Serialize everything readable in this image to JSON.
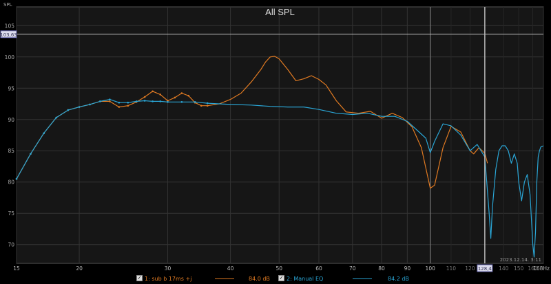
{
  "chart_data": {
    "type": "line",
    "title": "All SPL",
    "ylabel": "SPL",
    "xlabel": "Hz",
    "x_scale": "log",
    "xlim": [
      15,
      168
    ],
    "ylim": [
      67,
      108
    ],
    "grid": true,
    "x_ticks": [
      {
        "v": 15,
        "label": "15",
        "major": true
      },
      {
        "v": 20,
        "label": "20",
        "major": true
      },
      {
        "v": 30,
        "label": "30",
        "major": true
      },
      {
        "v": 40,
        "label": "40",
        "major": true
      },
      {
        "v": 50,
        "label": "50",
        "major": true
      },
      {
        "v": 60,
        "label": "60",
        "major": true
      },
      {
        "v": 70,
        "label": "70",
        "major": true
      },
      {
        "v": 80,
        "label": "80",
        "major": true
      },
      {
        "v": 90,
        "label": "90",
        "major": true
      },
      {
        "v": 100,
        "label": "100",
        "major": true
      },
      {
        "v": 110,
        "label": "110",
        "major": false
      },
      {
        "v": 120,
        "label": "120",
        "major": false
      },
      {
        "v": 140,
        "label": "140",
        "major": false
      },
      {
        "v": 150,
        "label": "150",
        "major": false
      },
      {
        "v": 160,
        "label": "160",
        "major": false
      },
      {
        "v": 168,
        "label": "168Hz",
        "major": true
      }
    ],
    "y_ticks": [
      70,
      75,
      80,
      85,
      90,
      95,
      100,
      105
    ],
    "cursor": {
      "x": 128.4,
      "x_label": "128,4",
      "y": 103.63,
      "y_label": "103,63"
    },
    "timestamp": "2023.12.14. 3:11",
    "series": [
      {
        "name": "1: sub b 17ms +j",
        "color": "#e07a22",
        "level": "84.0 dB",
        "x": [
          15,
          16,
          17,
          18,
          19,
          20,
          21,
          22,
          23,
          24,
          25,
          26,
          27,
          28,
          29,
          30,
          31,
          32,
          33,
          34,
          35,
          36,
          38,
          40,
          42,
          44,
          46,
          47,
          48,
          49,
          50,
          52,
          54,
          56,
          58,
          60,
          62,
          65,
          68,
          72,
          76,
          80,
          84,
          88,
          92,
          96,
          100,
          102,
          106,
          110,
          115,
          120,
          122,
          125,
          128.4,
          130
        ],
        "y": [
          80.5,
          84.5,
          87.8,
          90.3,
          91.5,
          92.0,
          92.4,
          92.9,
          92.9,
          92.0,
          92.2,
          92.8,
          93.6,
          94.5,
          94.0,
          93.0,
          93.5,
          94.2,
          93.8,
          92.7,
          92.2,
          92.2,
          92.5,
          93.2,
          94.2,
          96.0,
          98.0,
          99.2,
          100.0,
          100.1,
          99.7,
          98.0,
          96.2,
          96.5,
          97.0,
          96.4,
          95.5,
          93.0,
          91.2,
          91.0,
          91.3,
          90.2,
          91.0,
          90.3,
          88.8,
          85.5,
          79.0,
          79.5,
          85.5,
          88.9,
          88.0,
          85.0,
          84.5,
          85.5,
          84.6,
          83.0
        ]
      },
      {
        "name": "2: Manual EQ",
        "color": "#2aa6d6",
        "level": "84.2 dB",
        "x": [
          15,
          16,
          17,
          18,
          19,
          20,
          21,
          22,
          23,
          24,
          25,
          26,
          27,
          28,
          29,
          30,
          32,
          34,
          36,
          38,
          40,
          44,
          48,
          52,
          56,
          60,
          65,
          70,
          75,
          80,
          85,
          90,
          95,
          98,
          100,
          102,
          106,
          110,
          115,
          120,
          124,
          128.4,
          131,
          132,
          133,
          135,
          137,
          139,
          141,
          143,
          145,
          147,
          149,
          150,
          152,
          154,
          156,
          158,
          160,
          161,
          162,
          163,
          164,
          165,
          166,
          168
        ],
        "y": [
          80.5,
          84.5,
          87.8,
          90.3,
          91.5,
          92.0,
          92.4,
          92.9,
          93.2,
          92.7,
          92.7,
          92.9,
          93.0,
          92.9,
          92.9,
          92.8,
          92.8,
          92.8,
          92.6,
          92.5,
          92.4,
          92.3,
          92.1,
          92.0,
          92.0,
          91.6,
          91.0,
          90.8,
          91.0,
          90.5,
          90.5,
          89.7,
          88.0,
          87.0,
          84.7,
          86.5,
          89.3,
          89.0,
          87.5,
          85.0,
          86.0,
          84.0,
          75.0,
          71.0,
          76.0,
          82.0,
          85.0,
          85.8,
          85.8,
          85.0,
          83.0,
          84.5,
          83.0,
          80.0,
          77.0,
          80.0,
          81.2,
          78.0,
          70.0,
          68.0,
          72.0,
          80.0,
          84.0,
          85.0,
          85.6,
          85.8
        ]
      }
    ]
  },
  "legend": {
    "s1_label": "1: sub b 17ms +j",
    "s1_level": "84.0 dB",
    "s2_label": "2: Manual EQ",
    "s2_level": "84.2 dB",
    "check": "✓"
  }
}
